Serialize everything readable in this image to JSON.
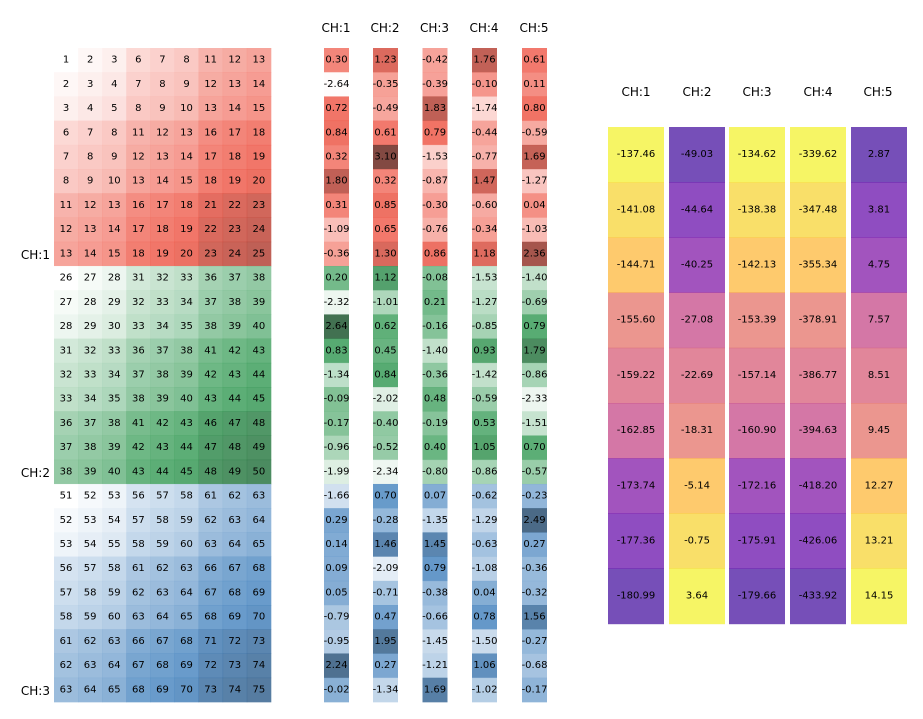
{
  "chart_data": [
    {
      "type": "heatmap",
      "panel": "index-grid",
      "row_group_labels": [
        "CH:1",
        "CH:2",
        "CH:3"
      ],
      "colors": {
        "CH:1": "#ef5a4a",
        "CH:2": "#3b9e5a",
        "CH:3": "#4a86c0"
      },
      "rows": [
        [
          1,
          2,
          3,
          6,
          7,
          8,
          11,
          12,
          13
        ],
        [
          2,
          3,
          4,
          7,
          8,
          9,
          12,
          13,
          14
        ],
        [
          3,
          4,
          5,
          8,
          9,
          10,
          13,
          14,
          15
        ],
        [
          6,
          7,
          8,
          11,
          12,
          13,
          16,
          17,
          18
        ],
        [
          7,
          8,
          9,
          12,
          13,
          14,
          17,
          18,
          19
        ],
        [
          8,
          9,
          10,
          13,
          14,
          15,
          18,
          19,
          20
        ],
        [
          11,
          12,
          13,
          16,
          17,
          18,
          21,
          22,
          23
        ],
        [
          12,
          13,
          14,
          17,
          18,
          19,
          22,
          23,
          24
        ],
        [
          13,
          14,
          15,
          18,
          19,
          20,
          23,
          24,
          25
        ],
        [
          26,
          27,
          28,
          31,
          32,
          33,
          36,
          37,
          38
        ],
        [
          27,
          28,
          29,
          32,
          33,
          34,
          37,
          38,
          39
        ],
        [
          28,
          29,
          30,
          33,
          34,
          35,
          38,
          39,
          40
        ],
        [
          31,
          32,
          33,
          36,
          37,
          38,
          41,
          42,
          43
        ],
        [
          32,
          33,
          34,
          37,
          38,
          39,
          42,
          43,
          44
        ],
        [
          33,
          34,
          35,
          38,
          39,
          40,
          43,
          44,
          45
        ],
        [
          36,
          37,
          38,
          41,
          42,
          43,
          46,
          47,
          48
        ],
        [
          37,
          38,
          39,
          42,
          43,
          44,
          47,
          48,
          49
        ],
        [
          38,
          39,
          40,
          43,
          44,
          45,
          48,
          49,
          50
        ],
        [
          51,
          52,
          53,
          56,
          57,
          58,
          61,
          62,
          63
        ],
        [
          52,
          53,
          54,
          57,
          58,
          59,
          62,
          63,
          64
        ],
        [
          53,
          54,
          55,
          58,
          59,
          60,
          63,
          64,
          65
        ],
        [
          56,
          57,
          58,
          61,
          62,
          63,
          66,
          67,
          68
        ],
        [
          57,
          58,
          59,
          62,
          63,
          64,
          67,
          68,
          69
        ],
        [
          58,
          59,
          60,
          63,
          64,
          65,
          68,
          69,
          70
        ],
        [
          61,
          62,
          63,
          66,
          67,
          68,
          71,
          72,
          73
        ],
        [
          62,
          63,
          64,
          67,
          68,
          69,
          72,
          73,
          74
        ],
        [
          63,
          64,
          65,
          68,
          69,
          70,
          73,
          74,
          75
        ]
      ]
    },
    {
      "type": "heatmap",
      "panel": "channel-values",
      "columns": [
        "CH:1",
        "CH:2",
        "CH:3",
        "CH:4",
        "CH:5"
      ],
      "colors": [
        "#ef5a4a",
        "#3b9e5a",
        "#4a86c0"
      ],
      "rows": [
        [
          0.3,
          1.23,
          -0.42,
          1.76,
          0.61
        ],
        [
          -2.64,
          -0.35,
          -0.39,
          -0.1,
          0.11
        ],
        [
          0.72,
          -0.49,
          1.83,
          -1.74,
          0.8
        ],
        [
          0.84,
          0.61,
          0.79,
          -0.44,
          -0.59
        ],
        [
          0.32,
          3.1,
          -1.53,
          -0.77,
          1.69
        ],
        [
          1.8,
          0.32,
          -0.87,
          1.47,
          -1.27
        ],
        [
          0.31,
          0.85,
          -0.3,
          -0.6,
          0.04
        ],
        [
          -1.09,
          0.65,
          -0.76,
          -0.34,
          -1.03
        ],
        [
          -0.36,
          1.3,
          0.86,
          1.18,
          2.36
        ],
        [
          0.2,
          1.12,
          -0.08,
          -1.53,
          -1.4
        ],
        [
          -2.32,
          -1.01,
          0.21,
          -1.27,
          -0.69
        ],
        [
          2.64,
          0.62,
          -0.16,
          -0.85,
          0.79
        ],
        [
          0.83,
          0.45,
          -1.4,
          0.93,
          1.79
        ],
        [
          -1.34,
          0.84,
          -0.36,
          -1.42,
          -0.86
        ],
        [
          -0.09,
          -2.02,
          0.48,
          -0.59,
          -2.33
        ],
        [
          -0.17,
          -0.4,
          -0.19,
          0.53,
          -1.51
        ],
        [
          -0.96,
          -0.52,
          0.4,
          1.05,
          0.7
        ],
        [
          -1.99,
          -2.34,
          -0.8,
          -0.86,
          -0.57
        ],
        [
          -1.66,
          0.7,
          0.07,
          -0.62,
          -0.23
        ],
        [
          0.29,
          -0.28,
          -1.35,
          -1.29,
          2.49
        ],
        [
          0.14,
          1.46,
          1.45,
          -0.63,
          0.27
        ],
        [
          0.09,
          -2.09,
          0.79,
          -1.08,
          -0.36
        ],
        [
          0.05,
          -0.71,
          -0.38,
          0.04,
          -0.32
        ],
        [
          -0.79,
          0.47,
          -0.66,
          0.78,
          1.56
        ],
        [
          -0.95,
          1.95,
          -1.45,
          -1.5,
          -0.27
        ],
        [
          2.24,
          0.27,
          -1.21,
          1.06,
          -0.68
        ],
        [
          -0.02,
          -1.34,
          1.69,
          -1.02,
          -0.17
        ]
      ]
    },
    {
      "type": "heatmap",
      "panel": "plasma-columns",
      "columns": [
        "CH:1",
        "CH:2",
        "CH:3",
        "CH:4",
        "CH:5"
      ],
      "colormap": "plasma",
      "rows": [
        [
          -137.46,
          -49.03,
          -134.62,
          -339.62,
          2.87
        ],
        [
          -141.08,
          -44.64,
          -138.38,
          -347.48,
          3.81
        ],
        [
          -144.71,
          -40.25,
          -142.13,
          -355.34,
          4.75
        ],
        [
          -155.6,
          -27.08,
          -153.39,
          -378.91,
          7.57
        ],
        [
          -159.22,
          -22.69,
          -157.14,
          -386.77,
          8.51
        ],
        [
          -162.85,
          -18.31,
          -160.9,
          -394.63,
          9.45
        ],
        [
          -173.74,
          -5.14,
          -172.16,
          -418.2,
          12.27
        ],
        [
          -177.36,
          -0.75,
          -175.91,
          -426.06,
          13.21
        ],
        [
          -180.99,
          3.64,
          -179.66,
          -433.92,
          14.15
        ]
      ]
    }
  ]
}
